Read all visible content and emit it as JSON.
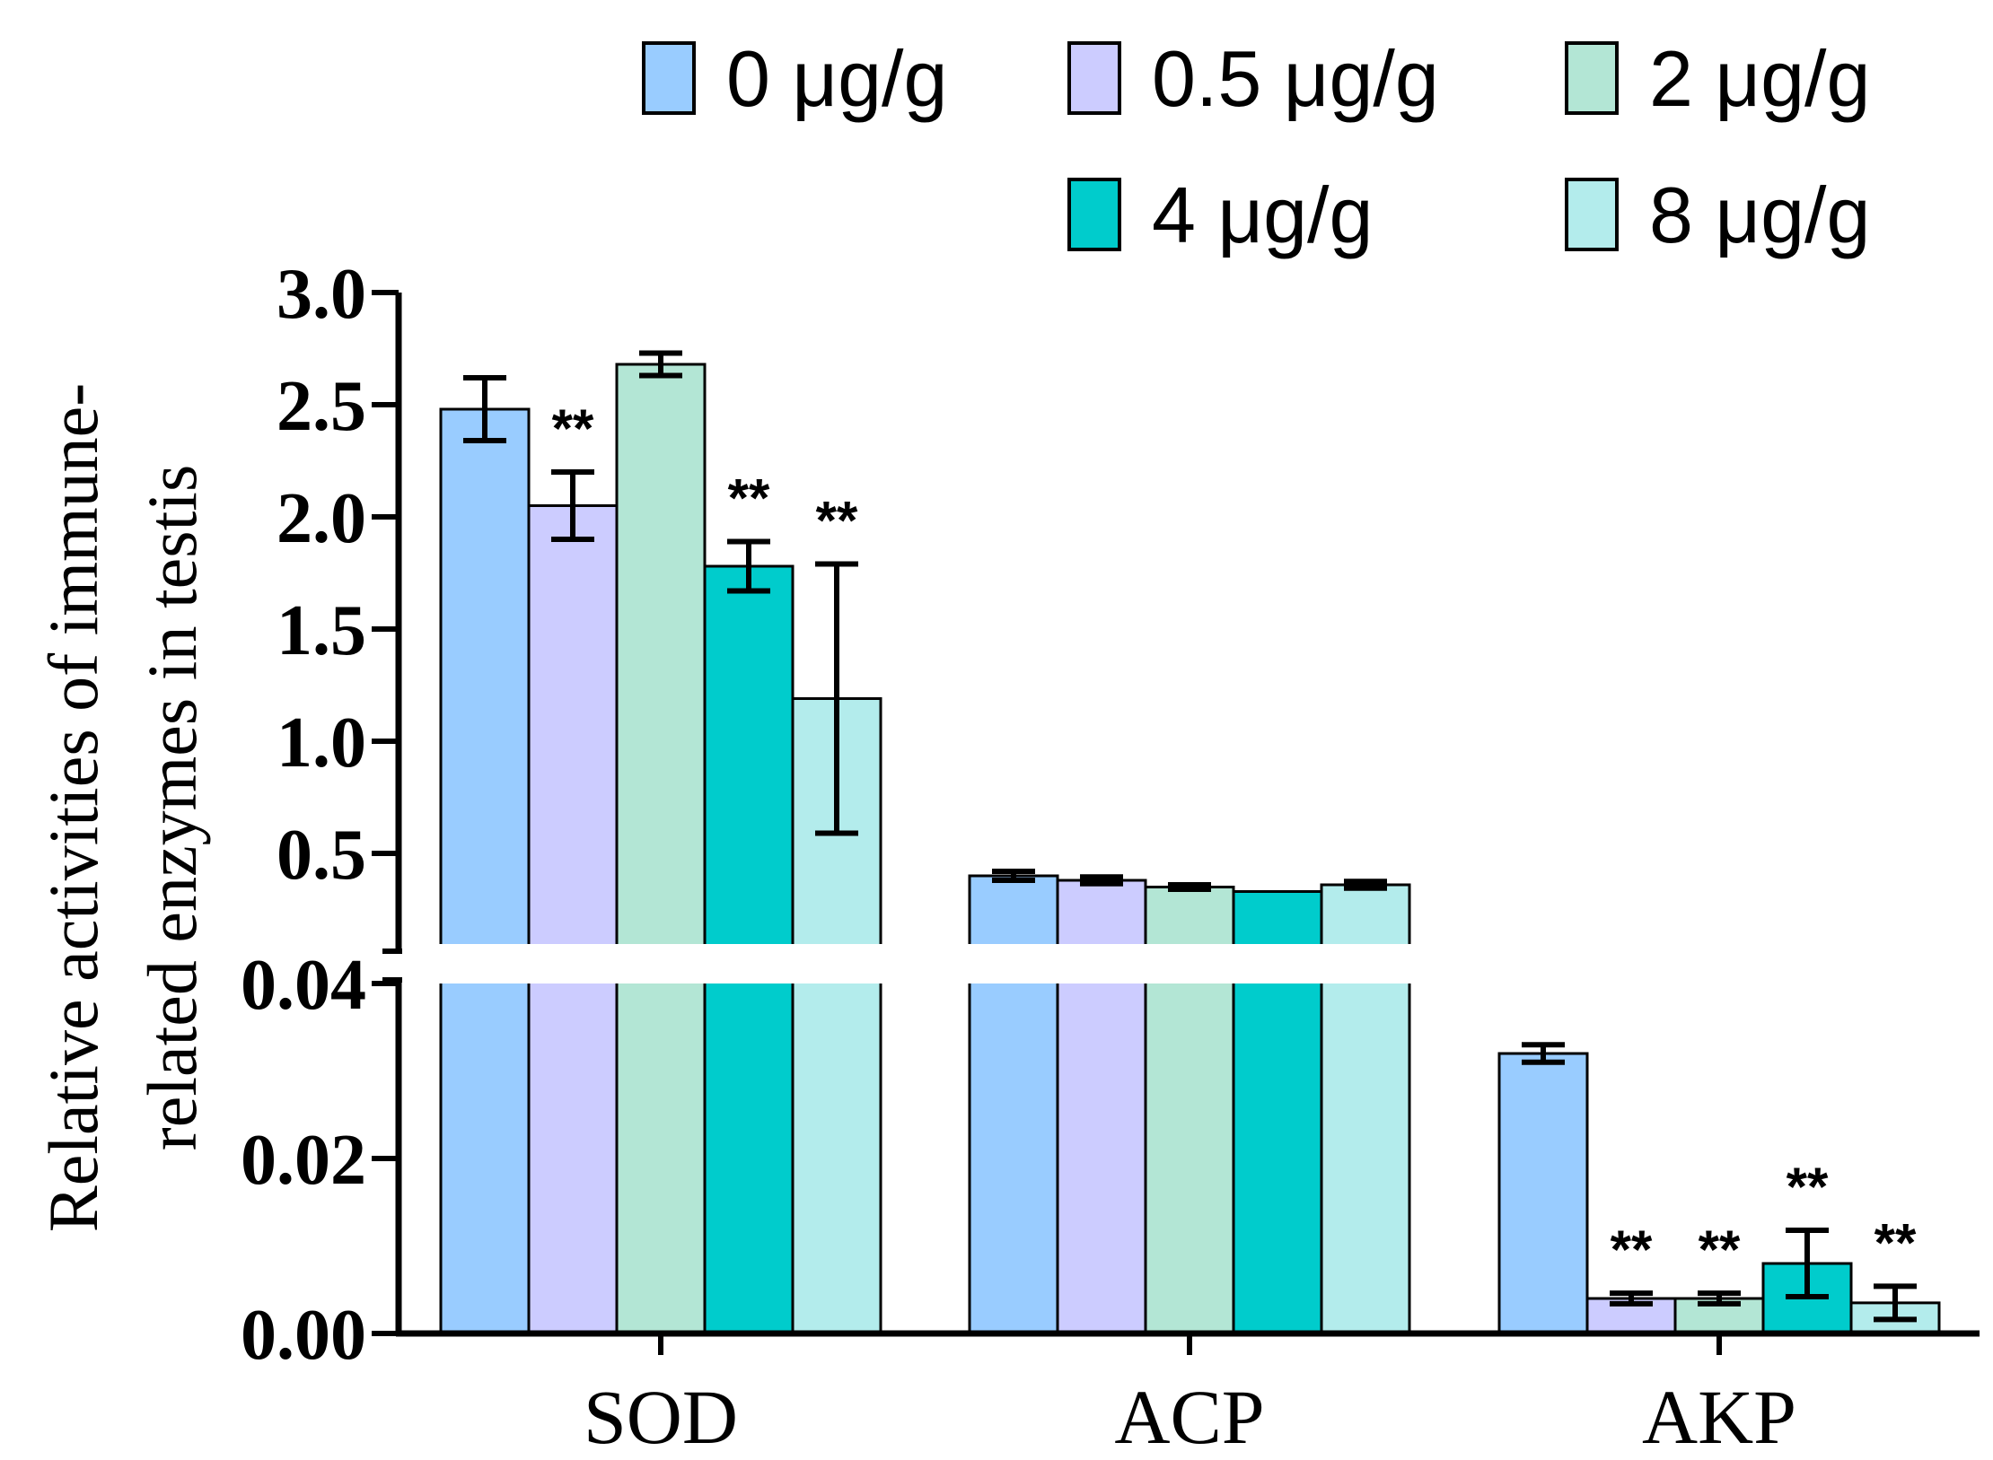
{
  "chart_data": {
    "type": "bar",
    "title": "",
    "xlabel": "",
    "ylabel_line1": "Relative activities of immune-",
    "ylabel_line2": "related enzymes in testis",
    "categories": [
      "SOD",
      "ACP",
      "AKP"
    ],
    "axis_break": true,
    "upper_segment": {
      "ylim": [
        0.04,
        3.0
      ],
      "ticks": [
        "0.5",
        "1.0",
        "1.5",
        "2.0",
        "2.5",
        "3.0"
      ]
    },
    "lower_segment": {
      "ylim": [
        0.0,
        0.04
      ],
      "ticks": [
        "0.00",
        "0.02",
        "0.04"
      ]
    },
    "series": [
      {
        "name": "0 μg/g",
        "color": "#99CCFF",
        "values": [
          2.48,
          0.4,
          0.032
        ],
        "errors": [
          0.14,
          0.02,
          0.001
        ],
        "significance": [
          "",
          "",
          ""
        ]
      },
      {
        "name": "0.5 μg/g",
        "color": "#CCCCFF",
        "values": [
          2.05,
          0.38,
          0.004
        ],
        "errors": [
          0.15,
          0.015,
          0.0006
        ],
        "significance": [
          "**",
          "",
          "**"
        ]
      },
      {
        "name": "2 μg/g",
        "color": "#B3E6D5",
        "values": [
          2.68,
          0.35,
          0.004
        ],
        "errors": [
          0.05,
          0.01,
          0.0006
        ],
        "significance": [
          "",
          "",
          "**"
        ]
      },
      {
        "name": "4 μg/g",
        "color": "#00CCCC",
        "values": [
          1.78,
          0.33,
          0.008
        ],
        "errors": [
          0.11,
          0.0,
          0.0038
        ],
        "significance": [
          "**",
          "",
          "**"
        ]
      },
      {
        "name": "8 μg/g",
        "color": "#B3ECEC",
        "values": [
          1.19,
          0.36,
          0.0035
        ],
        "errors": [
          0.6,
          0.015,
          0.0019
        ],
        "significance": [
          "**",
          "",
          "**"
        ]
      }
    ],
    "legend_position": "top"
  }
}
